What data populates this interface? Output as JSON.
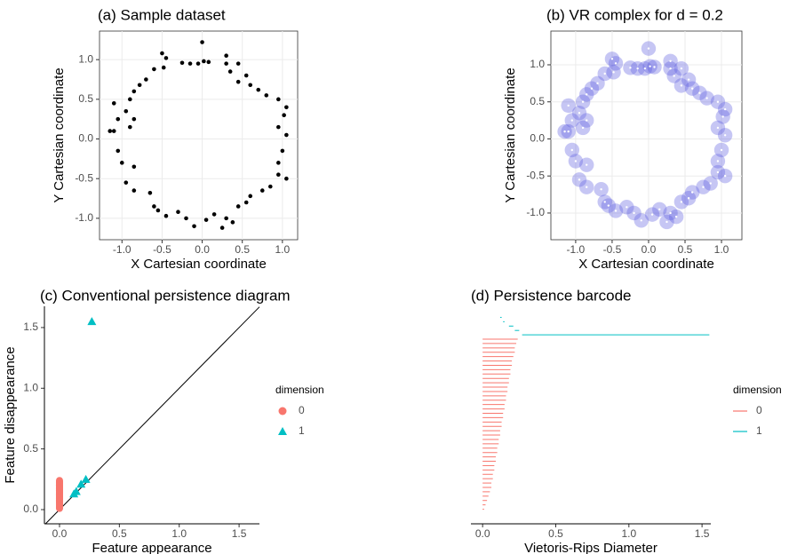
{
  "chart_data": [
    {
      "type": "scatter",
      "title": "(a) Sample dataset",
      "x_label": "X Cartesian coordinate",
      "y_label": "Y Cartesian coordinate",
      "color": "#000000",
      "grid": true,
      "x": [
        0.0,
        0.02,
        0.08,
        -0.05,
        -0.15,
        -0.25,
        -0.5,
        -0.45,
        -0.48,
        -0.6,
        -0.7,
        -0.78,
        -0.85,
        -0.9,
        -1.1,
        -0.95,
        -0.85,
        -1.05,
        -0.9,
        -1.15,
        -1.1,
        -1.05,
        -1.0,
        -0.85,
        -0.95,
        -0.85,
        -0.65,
        -0.6,
        -0.55,
        -0.45,
        -0.3,
        -0.2,
        -0.1,
        0.05,
        0.15,
        0.25,
        0.3,
        0.38,
        0.45,
        0.55,
        0.6,
        0.75,
        0.85,
        0.95,
        1.05,
        0.95,
        1.0,
        1.05,
        0.95,
        1.02,
        1.05,
        0.95,
        0.8,
        0.7,
        0.6,
        0.45,
        0.35,
        0.3,
        0.3,
        0.45,
        0.55
      ],
      "y": [
        1.22,
        0.98,
        0.97,
        0.95,
        0.95,
        0.96,
        1.08,
        1.02,
        0.9,
        0.88,
        0.75,
        0.68,
        0.6,
        0.5,
        0.45,
        0.35,
        0.25,
        0.25,
        0.15,
        0.1,
        0.1,
        -0.15,
        -0.3,
        -0.35,
        -0.55,
        -0.65,
        -0.68,
        -0.85,
        -0.9,
        -0.97,
        -0.92,
        -1.0,
        -1.1,
        -1.02,
        -0.95,
        -1.12,
        -1.0,
        -1.05,
        -0.85,
        -0.8,
        -0.72,
        -0.65,
        -0.6,
        -0.45,
        -0.5,
        -0.3,
        -0.15,
        0.05,
        0.15,
        0.3,
        0.4,
        0.5,
        0.55,
        0.62,
        0.68,
        0.72,
        0.85,
        0.95,
        1.05,
        0.95,
        0.8
      ],
      "xlim": [
        -1.28,
        1.19
      ],
      "ylim": [
        -1.27,
        1.36
      ],
      "xticks": [
        {
          "value": -1,
          "label": "-1.0"
        },
        -0.5,
        {
          "value": 0,
          "label": "0.0"
        },
        0.5,
        {
          "value": 1,
          "label": "1.0"
        }
      ],
      "yticks": [
        {
          "value": -1,
          "label": "-1.0"
        },
        -0.5,
        {
          "value": 0,
          "label": "0.0"
        },
        0.5,
        {
          "value": 1,
          "label": "1.0"
        }
      ]
    },
    {
      "type": "vr_complex",
      "title": "(b) VR complex for d = 0.2",
      "x_label": "X Cartesian coordinate",
      "y_label": "Y Cartesian coordinate",
      "color": "#5b5be0",
      "grid": true,
      "d": 0.2,
      "x": [
        0.0,
        0.02,
        0.08,
        -0.05,
        -0.15,
        -0.25,
        -0.5,
        -0.45,
        -0.48,
        -0.6,
        -0.7,
        -0.78,
        -0.85,
        -0.9,
        -1.1,
        -0.95,
        -0.85,
        -1.05,
        -0.9,
        -1.15,
        -1.1,
        -1.05,
        -1.0,
        -0.85,
        -0.95,
        -0.85,
        -0.65,
        -0.6,
        -0.55,
        -0.45,
        -0.3,
        -0.2,
        -0.1,
        0.05,
        0.15,
        0.25,
        0.3,
        0.38,
        0.45,
        0.55,
        0.6,
        0.75,
        0.85,
        0.95,
        1.05,
        0.95,
        1.0,
        1.05,
        0.95,
        1.02,
        1.05,
        0.95,
        0.8,
        0.7,
        0.6,
        0.45,
        0.35,
        0.3,
        0.3,
        0.45,
        0.55
      ],
      "y": [
        1.22,
        0.98,
        0.97,
        0.95,
        0.95,
        0.96,
        1.08,
        1.02,
        0.9,
        0.88,
        0.75,
        0.68,
        0.6,
        0.5,
        0.45,
        0.35,
        0.25,
        0.25,
        0.15,
        0.1,
        0.1,
        -0.15,
        -0.3,
        -0.35,
        -0.55,
        -0.65,
        -0.68,
        -0.85,
        -0.9,
        -0.97,
        -0.92,
        -1.0,
        -1.1,
        -1.02,
        -0.95,
        -1.12,
        -1.0,
        -1.05,
        -0.85,
        -0.8,
        -0.72,
        -0.65,
        -0.6,
        -0.45,
        -0.5,
        -0.3,
        -0.15,
        0.05,
        0.15,
        0.3,
        0.4,
        0.5,
        0.55,
        0.62,
        0.68,
        0.72,
        0.85,
        0.95,
        1.05,
        0.95,
        0.8
      ],
      "xlim": [
        -1.34,
        1.28
      ],
      "ylim": [
        -1.36,
        1.455
      ],
      "xticks": [
        {
          "value": -1,
          "label": "-1.0"
        },
        -0.5,
        {
          "value": 0,
          "label": "0.0"
        },
        0.5,
        {
          "value": 1,
          "label": "1.0"
        }
      ],
      "yticks": [
        {
          "value": -1,
          "label": "-1.0"
        },
        -0.5,
        {
          "value": 0,
          "label": "0.0"
        },
        0.5,
        {
          "value": 1,
          "label": "1.0"
        }
      ]
    },
    {
      "type": "persistence_diagram",
      "title": "(c) Conventional persistence diagram",
      "x_label": "Feature appearance",
      "y_label": "Feature disappearance",
      "legend_title": "dimension",
      "legend": "right",
      "series": [
        {
          "name": "0",
          "color": "#f8766d",
          "marker": "circle",
          "x": [
            0,
            0,
            0,
            0,
            0,
            0,
            0,
            0,
            0,
            0,
            0,
            0,
            0,
            0,
            0,
            0,
            0,
            0,
            0,
            0,
            0,
            0,
            0,
            0,
            0,
            0,
            0,
            0,
            0,
            0,
            0,
            0,
            0,
            0,
            0,
            0,
            0,
            0,
            0,
            0
          ],
          "y": [
            0.24,
            0.23,
            0.22,
            0.22,
            0.21,
            0.2,
            0.2,
            0.19,
            0.19,
            0.18,
            0.18,
            0.17,
            0.17,
            0.16,
            0.16,
            0.15,
            0.15,
            0.14,
            0.14,
            0.13,
            0.13,
            0.12,
            0.12,
            0.11,
            0.11,
            0.1,
            0.1,
            0.09,
            0.09,
            0.08,
            0.08,
            0.07,
            0.07,
            0.06,
            0.06,
            0.05,
            0.04,
            0.03,
            0.02,
            0.01
          ]
        },
        {
          "name": "1",
          "color": "#00bfc4",
          "marker": "triangle",
          "x": [
            0.12,
            0.14,
            0.18,
            0.22,
            0.27
          ],
          "y": [
            0.13,
            0.15,
            0.21,
            0.25,
            1.55
          ]
        }
      ],
      "xlim": [
        -0.126,
        1.67
      ],
      "ylim": [
        -0.117,
        1.675
      ],
      "xticks": [
        {
          "value": 0,
          "label": "0.0"
        },
        0.5,
        {
          "value": 1,
          "label": "1.0"
        },
        1.5
      ],
      "yticks": [
        {
          "value": 0,
          "label": "0.0"
        },
        0.5,
        {
          "value": 1,
          "label": "1.0"
        },
        1.5
      ]
    },
    {
      "type": "barcode",
      "title": "(d) Persistence barcode",
      "x_label": "Vietoris-Rips Diameter",
      "legend_title": "dimension",
      "legend": "right",
      "series": [
        {
          "name": "1",
          "color": "#00bfc4",
          "start": [
            0.12,
            0.14,
            0.18,
            0.22,
            0.27
          ],
          "end": [
            0.13,
            0.15,
            0.21,
            0.25,
            1.55
          ]
        },
        {
          "name": "0",
          "color": "#f8766d",
          "start": [
            0,
            0,
            0,
            0,
            0,
            0,
            0,
            0,
            0,
            0,
            0,
            0,
            0,
            0,
            0,
            0,
            0,
            0,
            0,
            0,
            0,
            0,
            0,
            0,
            0,
            0,
            0,
            0,
            0,
            0,
            0,
            0,
            0,
            0,
            0,
            0,
            0,
            0,
            0,
            0
          ],
          "end": [
            0.24,
            0.23,
            0.22,
            0.22,
            0.21,
            0.2,
            0.2,
            0.19,
            0.19,
            0.18,
            0.18,
            0.17,
            0.17,
            0.16,
            0.16,
            0.15,
            0.15,
            0.14,
            0.14,
            0.13,
            0.13,
            0.12,
            0.12,
            0.11,
            0.11,
            0.1,
            0.1,
            0.09,
            0.09,
            0.08,
            0.08,
            0.07,
            0.07,
            0.06,
            0.06,
            0.05,
            0.04,
            0.03,
            0.02,
            0.01
          ]
        }
      ],
      "xlim": [
        -0.08,
        1.56
      ],
      "xticks": [
        {
          "value": 0,
          "label": "0.0"
        },
        0.5,
        {
          "value": 1,
          "label": "1.0"
        },
        1.5
      ]
    }
  ]
}
